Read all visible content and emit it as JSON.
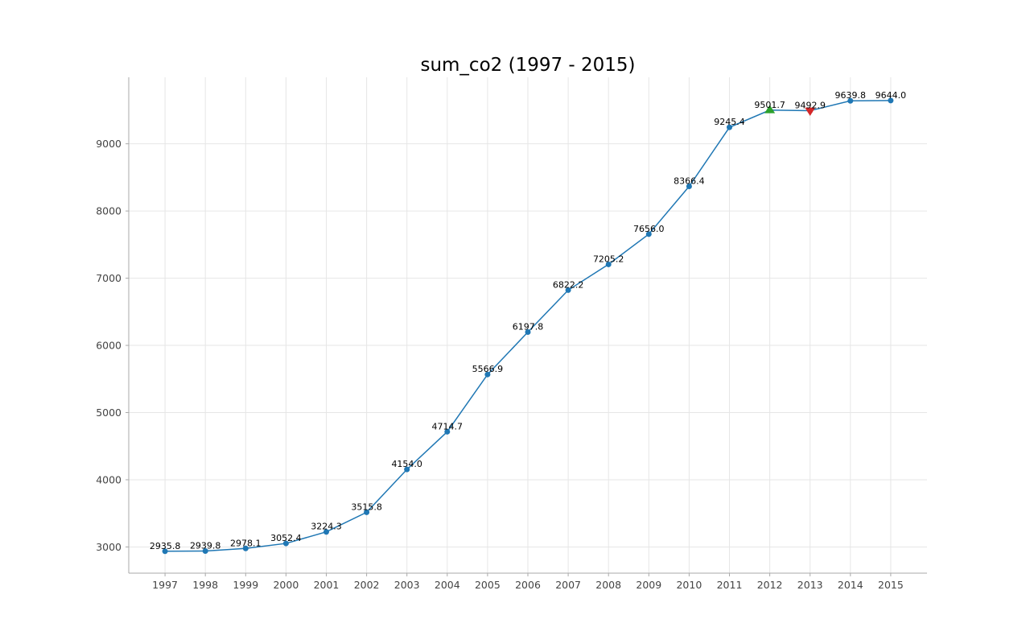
{
  "chart_data": {
    "type": "line",
    "title": "sum_co2 (1997 - 2015)",
    "xlabel": "",
    "ylabel": "",
    "x": [
      1997,
      1998,
      1999,
      2000,
      2001,
      2002,
      2003,
      2004,
      2005,
      2006,
      2007,
      2008,
      2009,
      2010,
      2011,
      2012,
      2013,
      2014,
      2015
    ],
    "series": [
      {
        "values": [
          2935.8,
          2939.8,
          2978.1,
          3052.4,
          3224.3,
          3515.8,
          4154.0,
          4714.7,
          5566.9,
          6197.8,
          6822.2,
          7205.2,
          7656.0,
          8366.4,
          9245.4,
          9501.7,
          9492.9,
          9639.8,
          9644.0
        ],
        "labels": [
          "2935.8",
          "2939.8",
          "2978.1",
          "3052.4",
          "3224.3",
          "3515.8",
          "4154.0",
          "4714.7",
          "5566.9",
          "6197.8",
          "6822.2",
          "7205.2",
          "7656.0",
          "8366.4",
          "9245.4",
          "9501.7",
          "9492.9",
          "9639.8",
          "9644.0"
        ],
        "color": "#1f77b4"
      }
    ],
    "markers": [
      {
        "x": 2012,
        "value": 9501.7,
        "shape": "triangle-up",
        "color": "#2ca02c"
      },
      {
        "x": 2013,
        "value": 9492.9,
        "shape": "triangle-down",
        "color": "#d62728"
      }
    ],
    "yticks": [
      3000,
      4000,
      5000,
      6000,
      7000,
      8000,
      9000
    ],
    "xticks": [
      "1997",
      "1998",
      "1999",
      "2000",
      "2001",
      "2002",
      "2003",
      "2004",
      "2005",
      "2006",
      "2007",
      "2008",
      "2009",
      "2010",
      "2011",
      "2012",
      "2013",
      "2014",
      "2015"
    ],
    "ylim": [
      2610,
      9990
    ],
    "xlim": [
      1996.1,
      2015.9
    ],
    "grid": true,
    "legend": "none"
  }
}
